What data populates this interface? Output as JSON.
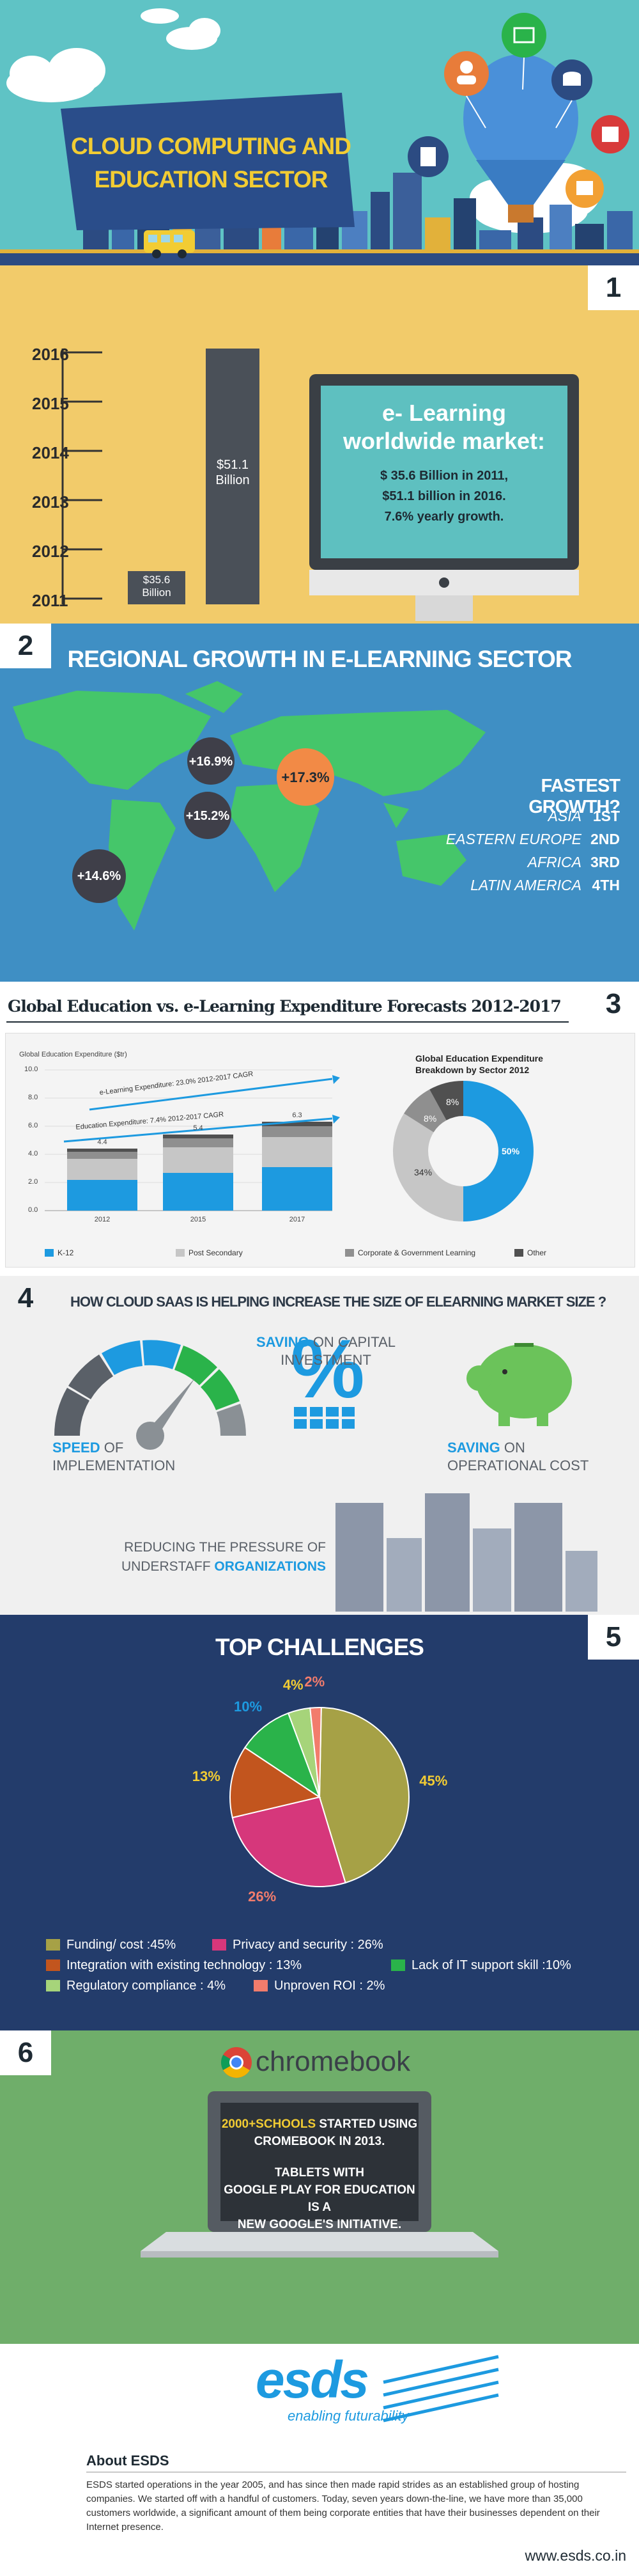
{
  "header": {
    "title_line1": "CLOUD COMPUTING AND",
    "title_line2": "EDUCATION SECTOR",
    "colors": {
      "sky": "#5ec4c6",
      "banner": "#2a4d8a",
      "title": "#f2cc33"
    }
  },
  "section1": {
    "number": "1",
    "years": [
      "2016",
      "2015",
      "2014",
      "2013",
      "2012",
      "2011"
    ],
    "bar_2011_label": "$35.6 Billion",
    "bar_2016_label": "$51.1 Billion",
    "monitor_title_line1": "e- Learning",
    "monitor_title_line2": "worldwide market:",
    "monitor_lines": [
      "$ 35.6 Billion in 2011,",
      "$51.1 billion in 2016.",
      "7.6% yearly growth."
    ]
  },
  "section2": {
    "number": "2",
    "title": "REGIONAL GROWTH IN E-LEARNING SECTOR",
    "bubbles": [
      "+16.9%",
      "+17.3%",
      "+15.2%",
      "+14.6%"
    ],
    "fastest_title": "FASTEST GROWTH?",
    "ranking": [
      {
        "region": "ASIA",
        "rank": "1ST"
      },
      {
        "region": "EASTERN EUROPE",
        "rank": "2ND"
      },
      {
        "region": "AFRICA",
        "rank": "3RD"
      },
      {
        "region": "LATIN AMERICA",
        "rank": "4TH"
      }
    ]
  },
  "section3": {
    "number": "3",
    "title": "Global Education vs. e-Learning  Expenditure Forecasts 2012-2017",
    "bar_chart": {
      "ylabel": "Global Education Expenditure ($tr)",
      "yticks": [
        "10.0",
        "8.0",
        "6.0",
        "4.0",
        "2.0",
        "0.0"
      ],
      "categories": [
        "2012",
        "2015",
        "2017"
      ],
      "top_labels": [
        "4.4",
        "5.4",
        "6.3"
      ],
      "arrow1_label": "e-Learning Expenditure: 23.0% 2012-2017 CAGR",
      "arrow2_label": "Education Expenditure: 7.4% 2012-2017 CAGR",
      "legend": [
        "K-12",
        "Post Secondary",
        "Corporate & Government Learning",
        "Other"
      ]
    },
    "donut_title_line1": "Global Education Expenditure",
    "donut_title_line2": "Breakdown by Sector 2012",
    "donut_labels": [
      "50%",
      "34%",
      "8%",
      "8%"
    ]
  },
  "section4": {
    "number": "4",
    "title": "HOW CLOUD SAAS IS HELPING INCREASE THE SIZE OF ELEARNING MARKET SIZE ?",
    "speed_em": "SPEED",
    "speed_rest": " OF",
    "speed_line2": "IMPLEMENTATION",
    "capital_em": "SAVING",
    "capital_rest": " ON CAPITAL",
    "capital_line2": "INVESTMENT",
    "operational_em": "SAVING",
    "operational_rest": " ON",
    "operational_line2": "OPERATIONAL COST",
    "reducing_line1": "REDUCING THE PRESSURE OF",
    "reducing_line2_rest": "UNDERSTAFF ",
    "reducing_line2_em": "ORGANIZATIONS",
    "percent_symbol": "%"
  },
  "section5": {
    "number": "5",
    "title": "TOP CHALLENGES",
    "legend": [
      {
        "label": "Funding/ cost :45%",
        "color": "#a6a146"
      },
      {
        "label": "Privacy and security : 26%",
        "color": "#d6377b"
      },
      {
        "label": "Integration with existing technology : 13%",
        "color": "#c2551e"
      },
      {
        "label": "Lack of IT support skill :10%",
        "color": "#2ab34a"
      },
      {
        "label": "Regulatory compliance : 4%",
        "color": "#a6d47a"
      },
      {
        "label": "Unproven ROI : 2%",
        "color": "#f27c6c"
      }
    ],
    "slice_labels": [
      "45%",
      "26%",
      "13%",
      "10%",
      "4%",
      "2%"
    ]
  },
  "chart_data": {
    "type": "pie",
    "title": "TOP CHALLENGES",
    "categories": [
      "Funding/ cost",
      "Privacy and security",
      "Integration with existing technology",
      "Lack of IT support skill",
      "Regulatory compliance",
      "Unproven ROI"
    ],
    "values": [
      45,
      26,
      13,
      10,
      4,
      2
    ],
    "colors": [
      "#a6a146",
      "#d6377b",
      "#c2551e",
      "#2ab34a",
      "#a6d47a",
      "#f27c6c"
    ],
    "legend": "bottom"
  },
  "section6": {
    "number": "6",
    "logo_text": "chromebook",
    "screen_l1_em": "2000+SCHOOLS",
    "screen_l1_rest": " STARTED USING",
    "screen_l2": "CROMEBOOK IN 2013.",
    "screen_l3": "TABLETS WITH",
    "screen_l4": "GOOGLE PLAY FOR EDUCATION IS A",
    "screen_l5": "NEW GOOGLE'S INITIATIVE."
  },
  "footer": {
    "logo": "esds",
    "tagline": "enabling futurability",
    "about_title": "About ESDS",
    "about_text": "ESDS started operations in the year 2005, and has since then made rapid strides as an established group of hosting companies. We started off with a handful of customers. Today, seven years down-the-line, we have more than 35,000 customers worldwide, a significant amount of them being corporate entities that have their businesses dependent on their Internet presence.",
    "url": "www.esds.co.in"
  }
}
